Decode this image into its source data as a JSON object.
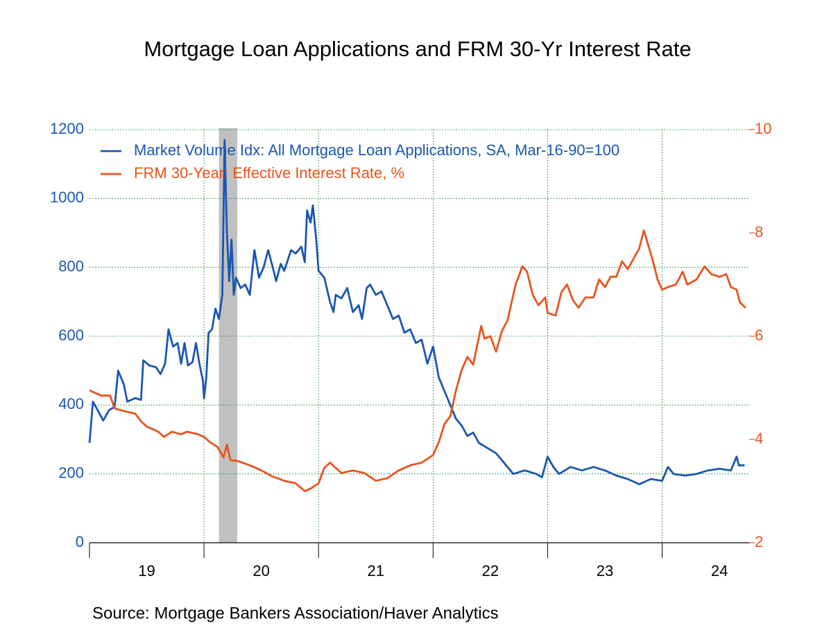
{
  "chart_data": {
    "type": "line",
    "title": "Mortgage Loan Applications and FRM 30-Yr Interest Rate",
    "source": "Source:  Mortgage Bankers Association/Haver Analytics",
    "categories": [
      "19",
      "20",
      "21",
      "22",
      "23",
      "24"
    ],
    "xlim": [
      19,
      24.76
    ],
    "xticks": [
      19,
      20,
      21,
      22,
      23,
      24
    ],
    "ylim": [
      0,
      1200
    ],
    "yticks": [
      0,
      200,
      400,
      600,
      800,
      1000,
      1200
    ],
    "y2lim": [
      2,
      10
    ],
    "y2ticks": [
      2,
      4,
      6,
      8,
      10
    ],
    "grid": true,
    "legend": "top-left",
    "recession": [
      20.13,
      20.29
    ],
    "series": [
      {
        "name": "Market Volume Idx: All Mortgage Loan Applications, SA, Mar-16-90=100",
        "color": "#1a56b0",
        "axis": "y",
        "x": [
          19.0,
          19.03,
          19.08,
          19.12,
          19.17,
          19.22,
          19.25,
          19.3,
          19.33,
          19.4,
          19.45,
          19.47,
          19.52,
          19.58,
          19.62,
          19.66,
          19.69,
          19.73,
          19.77,
          19.8,
          19.83,
          19.86,
          19.9,
          19.93,
          19.96,
          19.99,
          20.0,
          20.02,
          20.04,
          20.07,
          20.1,
          20.13,
          20.16,
          20.18,
          20.2,
          20.22,
          20.24,
          20.26,
          20.28,
          20.32,
          20.36,
          20.4,
          20.44,
          20.48,
          20.52,
          20.56,
          20.6,
          20.63,
          20.67,
          20.7,
          20.76,
          20.8,
          20.85,
          20.88,
          20.9,
          20.93,
          20.95,
          20.98,
          21.0,
          21.05,
          21.1,
          21.13,
          21.15,
          21.2,
          21.25,
          21.3,
          21.35,
          21.38,
          21.42,
          21.45,
          21.5,
          21.55,
          21.6,
          21.65,
          21.7,
          21.75,
          21.8,
          21.85,
          21.9,
          21.95,
          22.0,
          22.05,
          22.1,
          22.15,
          22.2,
          22.25,
          22.3,
          22.35,
          22.4,
          22.45,
          22.5,
          22.55,
          22.6,
          22.7,
          22.8,
          22.9,
          22.95,
          23.0,
          23.05,
          23.1,
          23.2,
          23.3,
          23.4,
          23.5,
          23.6,
          23.7,
          23.8,
          23.9,
          24.0,
          24.05,
          24.1,
          24.2,
          24.3,
          24.4,
          24.5,
          24.6,
          24.65,
          24.67,
          24.72
        ],
        "values": [
          290,
          410,
          380,
          355,
          385,
          395,
          500,
          460,
          410,
          420,
          415,
          530,
          515,
          510,
          490,
          520,
          620,
          570,
          580,
          520,
          580,
          515,
          525,
          580,
          520,
          470,
          420,
          480,
          610,
          620,
          680,
          650,
          720,
          1170,
          900,
          760,
          880,
          720,
          770,
          740,
          750,
          720,
          850,
          770,
          800,
          850,
          800,
          760,
          810,
          790,
          850,
          840,
          860,
          815,
          965,
          930,
          980,
          880,
          790,
          770,
          700,
          670,
          720,
          710,
          740,
          670,
          690,
          650,
          740,
          750,
          720,
          730,
          690,
          650,
          660,
          610,
          620,
          580,
          590,
          520,
          570,
          480,
          440,
          400,
          360,
          340,
          310,
          320,
          290,
          280,
          270,
          260,
          240,
          200,
          210,
          200,
          190,
          250,
          220,
          200,
          220,
          210,
          220,
          210,
          195,
          185,
          170,
          185,
          180,
          220,
          200,
          195,
          200,
          210,
          215,
          210,
          250,
          225,
          225
        ]
      },
      {
        "name": "FRM 30-Year: Effective Interest Rate, %",
        "color": "#e8541c",
        "axis": "y2",
        "x": [
          19.0,
          19.05,
          19.1,
          19.18,
          19.22,
          19.3,
          19.4,
          19.45,
          19.5,
          19.6,
          19.65,
          19.72,
          19.8,
          19.85,
          19.95,
          20.0,
          20.05,
          20.12,
          20.17,
          20.2,
          20.23,
          20.3,
          20.4,
          20.5,
          20.6,
          20.7,
          20.8,
          20.88,
          20.93,
          21.0,
          21.05,
          21.1,
          21.2,
          21.3,
          21.4,
          21.5,
          21.6,
          21.7,
          21.8,
          21.9,
          22.0,
          22.05,
          22.1,
          22.15,
          22.2,
          22.25,
          22.3,
          22.35,
          22.42,
          22.45,
          22.5,
          22.55,
          22.6,
          22.65,
          22.72,
          22.78,
          22.82,
          22.87,
          22.92,
          22.98,
          23.0,
          23.07,
          23.12,
          23.17,
          23.22,
          23.27,
          23.33,
          23.4,
          23.45,
          23.5,
          23.55,
          23.6,
          23.65,
          23.7,
          23.75,
          23.8,
          23.84,
          23.88,
          23.92,
          23.96,
          24.0,
          24.05,
          24.12,
          24.18,
          24.22,
          24.3,
          24.37,
          24.43,
          24.5,
          24.56,
          24.6,
          24.65,
          24.68,
          24.73
        ],
        "values": [
          4.95,
          4.9,
          4.85,
          4.85,
          4.6,
          4.55,
          4.5,
          4.35,
          4.25,
          4.15,
          4.05,
          4.15,
          4.1,
          4.15,
          4.1,
          4.05,
          3.95,
          3.85,
          3.65,
          3.9,
          3.6,
          3.58,
          3.5,
          3.4,
          3.28,
          3.2,
          3.15,
          3.0,
          3.05,
          3.15,
          3.45,
          3.55,
          3.35,
          3.4,
          3.35,
          3.2,
          3.25,
          3.4,
          3.5,
          3.55,
          3.7,
          3.95,
          4.3,
          4.45,
          4.95,
          5.35,
          5.6,
          5.45,
          6.2,
          5.95,
          6.0,
          5.7,
          6.1,
          6.3,
          7.0,
          7.35,
          7.25,
          6.8,
          6.6,
          6.75,
          6.45,
          6.4,
          6.85,
          7.0,
          6.7,
          6.55,
          6.75,
          6.75,
          7.1,
          6.95,
          7.15,
          7.15,
          7.45,
          7.3,
          7.5,
          7.7,
          8.05,
          7.75,
          7.45,
          7.1,
          6.9,
          6.95,
          7.0,
          7.25,
          7.0,
          7.1,
          7.35,
          7.2,
          7.15,
          7.2,
          6.95,
          6.9,
          6.65,
          6.55
        ]
      }
    ]
  }
}
